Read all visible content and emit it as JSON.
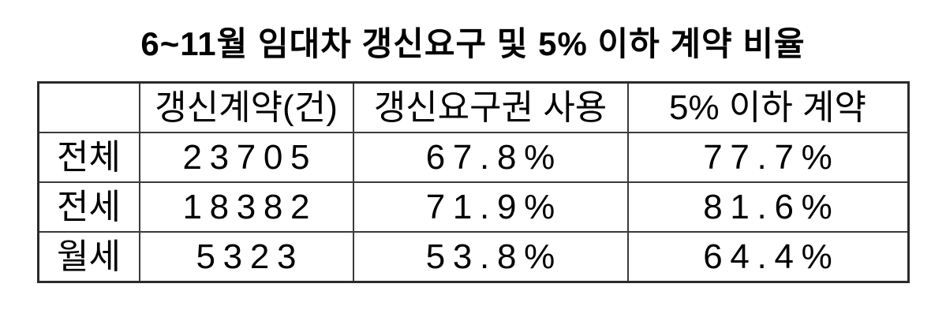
{
  "title": "6~11월 임대차 갱신요구 및 5% 이하 계약 비율",
  "table": {
    "headers": [
      "",
      "갱신계약(건)",
      "갱신요구권 사용",
      "5% 이하 계약"
    ],
    "rows": [
      {
        "label": "전체",
        "values": [
          "23705",
          "67.8%",
          "77.7%"
        ]
      },
      {
        "label": "전세",
        "values": [
          "18382",
          "71.9%",
          "81.6%"
        ]
      },
      {
        "label": "월세",
        "values": [
          "5323",
          "53.8%",
          "64.4%"
        ]
      }
    ]
  },
  "chart_data": {
    "type": "table",
    "title": "6~11월 임대차 갱신요구 및 5% 이하 계약 비율",
    "columns": [
      "",
      "갱신계약(건)",
      "갱신요구권 사용",
      "5% 이하 계약"
    ],
    "rows": [
      [
        "전체",
        23705,
        "67.8%",
        "77.7%"
      ],
      [
        "전세",
        18382,
        "71.9%",
        "81.6%"
      ],
      [
        "월세",
        5323,
        "53.8%",
        "64.4%"
      ]
    ],
    "notes": {
      "renewal_request_usage_pct": [
        67.8,
        71.9,
        53.8
      ],
      "under_5_percent_contract_pct": [
        77.7,
        81.6,
        64.4
      ],
      "renewal_contract_counts": [
        23705,
        18382,
        5323
      ]
    },
    "colors": {
      "text": "#000000",
      "border": "#3a3a3a",
      "background": "#ffffff"
    }
  }
}
